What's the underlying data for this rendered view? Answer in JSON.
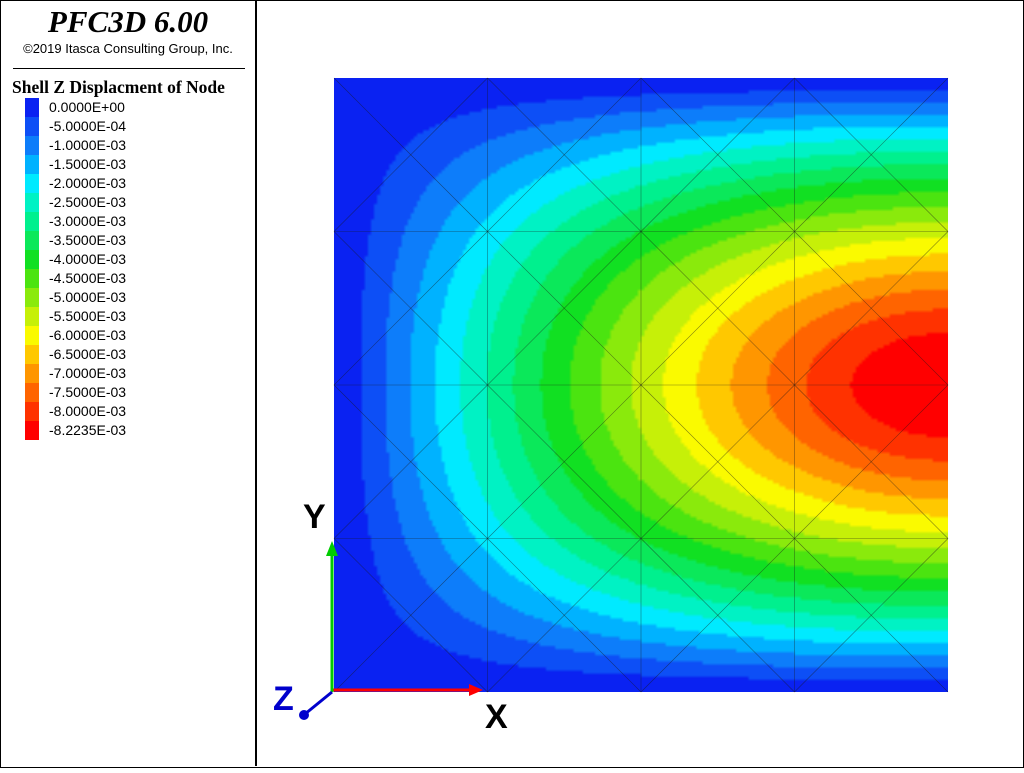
{
  "app": {
    "title": "PFC3D 6.00",
    "copyright": "©2019 Itasca Consulting Group, Inc."
  },
  "legend": {
    "title": "Shell Z Displacment of Node",
    "entries": [
      {
        "label": "0.0000E+00",
        "color": "#0a22f2"
      },
      {
        "label": "-5.0000E-04",
        "color": "#0d4ff6"
      },
      {
        "label": "-1.0000E-03",
        "color": "#0d7dfa"
      },
      {
        "label": "-1.5000E-03",
        "color": "#00b2ff"
      },
      {
        "label": "-2.0000E-03",
        "color": "#00eaff"
      },
      {
        "label": "-2.5000E-03",
        "color": "#00f2c4"
      },
      {
        "label": "-3.0000E-03",
        "color": "#00f08e"
      },
      {
        "label": "-3.5000E-03",
        "color": "#0be85a"
      },
      {
        "label": "-4.0000E-03",
        "color": "#11e022"
      },
      {
        "label": "-4.5000E-03",
        "color": "#4be410"
      },
      {
        "label": "-5.0000E-03",
        "color": "#8aea0c"
      },
      {
        "label": "-5.5000E-03",
        "color": "#c6f008"
      },
      {
        "label": "-6.0000E-03",
        "color": "#fafa00"
      },
      {
        "label": "-6.5000E-03",
        "color": "#ffc800"
      },
      {
        "label": "-7.0000E-03",
        "color": "#ff9600"
      },
      {
        "label": "-7.5000E-03",
        "color": "#ff6400"
      },
      {
        "label": "-8.0000E-03",
        "color": "#ff3200"
      },
      {
        "label": "-8.2235E-03",
        "color": "#ff0000"
      }
    ]
  },
  "chart_data": {
    "type": "heatmap",
    "value_min": -0.0082235,
    "value_max": 0.0,
    "grid": true,
    "mesh_divisions": 4,
    "xlabel": "X",
    "ylabel": "Y",
    "zlabel": "Z",
    "max_location": {
      "x": 1.0,
      "y": 0.5
    },
    "axis_colors": {
      "x": "#ff0000",
      "y": "#00cc00",
      "z": "#0000cc"
    }
  }
}
